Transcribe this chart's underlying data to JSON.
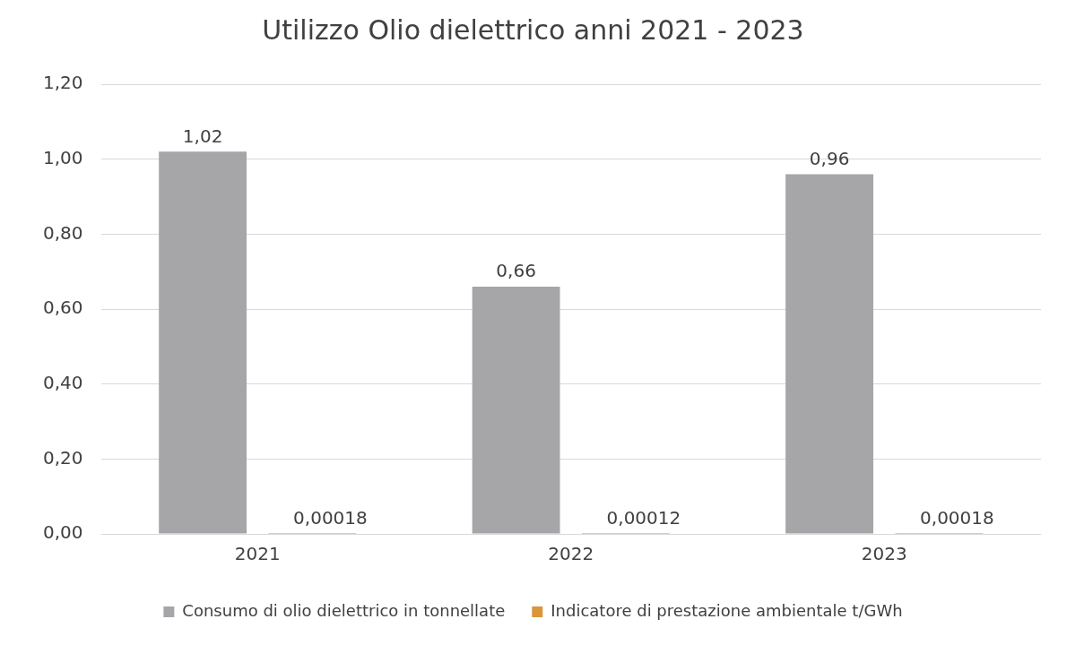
{
  "chart_data": {
    "type": "bar",
    "title": "Utilizzo Olio dielettrico anni 2021 - 2023",
    "categories": [
      "2021",
      "2022",
      "2023"
    ],
    "series": [
      {
        "name": "Consumo di olio dielettrico in tonnellate",
        "color": "#a6a6a9",
        "values": [
          1.02,
          0.66,
          0.96
        ],
        "value_labels": [
          "1,02",
          "0,66",
          "0,96"
        ]
      },
      {
        "name": "Indicatore di prestazione ambientale t/GWh",
        "color": "#d9963a",
        "values": [
          0.00018,
          0.00012,
          0.00018
        ],
        "value_labels": [
          "0,00018",
          "0,00012",
          "0,00018"
        ]
      }
    ],
    "ylim": [
      0,
      1.2
    ],
    "yticks": [
      {
        "value": 0,
        "label": "0,00"
      },
      {
        "value": 0.2,
        "label": "0,20"
      },
      {
        "value": 0.4,
        "label": "0,40"
      },
      {
        "value": 0.6,
        "label": "0,60"
      },
      {
        "value": 0.8,
        "label": "0,80"
      },
      {
        "value": 1,
        "label": "1,00"
      },
      {
        "value": 1.2,
        "label": "1,20"
      }
    ],
    "grid": "y",
    "legend": "bottom"
  }
}
